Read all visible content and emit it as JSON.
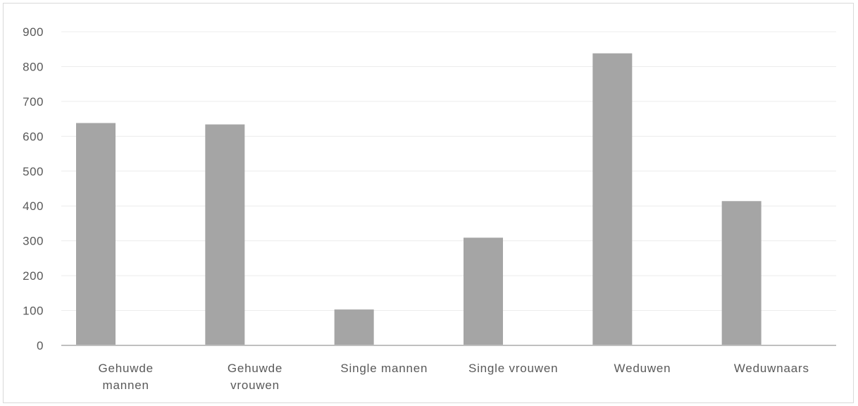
{
  "chart_data": {
    "type": "bar",
    "categories": [
      [
        "Gehuwde",
        "mannen"
      ],
      [
        "Gehuwde",
        "vrouwen"
      ],
      [
        "Single mannen"
      ],
      [
        "Single vrouwen"
      ],
      [
        "Weduwen"
      ],
      [
        "Weduwnaars"
      ]
    ],
    "values": [
      638,
      634,
      103,
      309,
      838,
      414
    ],
    "ylim": [
      0,
      900
    ],
    "yticks": [
      "0",
      "100",
      "200",
      "300",
      "400",
      "500",
      "600",
      "700",
      "800",
      "900"
    ],
    "grid": true,
    "title": "",
    "xlabel": "",
    "ylabel": "",
    "colors": {
      "bar": "#a5a5a5",
      "grid": "#ececec",
      "axis": "#bfbfbf",
      "text": "#595959"
    }
  }
}
